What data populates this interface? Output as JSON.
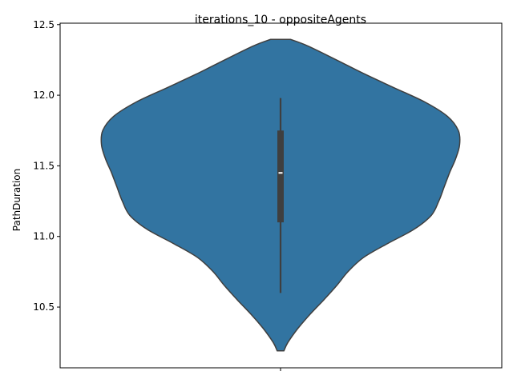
{
  "chart_data": {
    "type": "violin",
    "title": "iterations_10 - oppositeAgents",
    "xlabel": "",
    "ylabel": "PathDuration",
    "ylim": [
      10.07,
      12.51
    ],
    "yticks": [
      10.5,
      11.0,
      11.5,
      12.0,
      12.5
    ],
    "ytick_labels": [
      "10.5",
      "11.0",
      "11.5",
      "12.0",
      "12.5"
    ],
    "xticks": [
      ""
    ],
    "grid": false,
    "legend": "none",
    "colors": {
      "violin_fill": "#3274a1",
      "violin_edge": "#3f3f3f",
      "box": "#3f3f3f",
      "median": "#ffffff"
    },
    "violin": {
      "density_profile": [
        {
          "y": 10.19,
          "width": 0.05
        },
        {
          "y": 10.25,
          "width": 0.11
        },
        {
          "y": 10.35,
          "width": 0.26
        },
        {
          "y": 10.45,
          "width": 0.44
        },
        {
          "y": 10.55,
          "width": 0.64
        },
        {
          "y": 10.65,
          "width": 0.83
        },
        {
          "y": 10.75,
          "width": 1.0
        },
        {
          "y": 10.85,
          "width": 1.23
        },
        {
          "y": 10.95,
          "width": 1.59
        },
        {
          "y": 11.05,
          "width": 1.98
        },
        {
          "y": 11.15,
          "width": 2.24
        },
        {
          "y": 11.25,
          "width": 2.35
        },
        {
          "y": 11.35,
          "width": 2.43
        },
        {
          "y": 11.45,
          "width": 2.51
        },
        {
          "y": 11.55,
          "width": 2.6
        },
        {
          "y": 11.65,
          "width": 2.66
        },
        {
          "y": 11.75,
          "width": 2.64
        },
        {
          "y": 11.85,
          "width": 2.48
        },
        {
          "y": 11.95,
          "width": 2.15
        },
        {
          "y": 12.05,
          "width": 1.7
        },
        {
          "y": 12.15,
          "width": 1.25
        },
        {
          "y": 12.25,
          "width": 0.83
        },
        {
          "y": 12.35,
          "width": 0.4
        },
        {
          "y": 12.395,
          "width": 0.15
        }
      ],
      "box": {
        "min": 10.6,
        "q1": 11.1,
        "median": 11.45,
        "q3": 11.75,
        "max": 11.98
      }
    }
  }
}
